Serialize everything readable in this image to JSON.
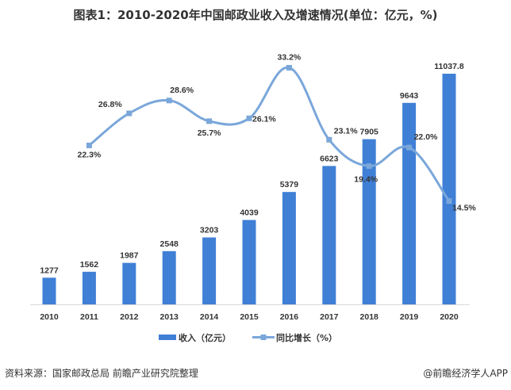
{
  "title": "图表1：2010-2020年中国邮政业收入及增速情况(单位：亿元，%)",
  "source": "资料来源：国家邮政总局 前瞻产业研究院整理",
  "brand": "@前瞻经济学人APP",
  "chart_data": {
    "type": "bar+line",
    "categories": [
      "2010",
      "2011",
      "2012",
      "2013",
      "2014",
      "2015",
      "2016",
      "2017",
      "2018",
      "2019",
      "2020"
    ],
    "series": [
      {
        "name": "收入（亿元）",
        "type": "bar",
        "axis": "primary",
        "color": "#3f7fd6",
        "values": [
          1277,
          1562,
          1987,
          2548,
          3203,
          4039,
          5379,
          6623,
          7905,
          9643,
          11037.8
        ]
      },
      {
        "name": "同比增长（%）",
        "type": "line",
        "axis": "secondary",
        "smooth": true,
        "color": "#7aa7da",
        "values": [
          null,
          22.3,
          26.8,
          28.6,
          25.7,
          26.1,
          33.2,
          23.1,
          19.4,
          22.0,
          14.5
        ],
        "labels": [
          "",
          "22.3%",
          "26.8%",
          "28.6%",
          "25.7%",
          "26.1%",
          "33.2%",
          "23.1%",
          "19.4%",
          "22.0%",
          "14.5%"
        ]
      }
    ],
    "primary_ylim": [
      0,
      11037.8
    ],
    "secondary_ylim": [
      0,
      42.7
    ],
    "axes_visible": false,
    "grid": false,
    "legend": "bottom-center"
  }
}
